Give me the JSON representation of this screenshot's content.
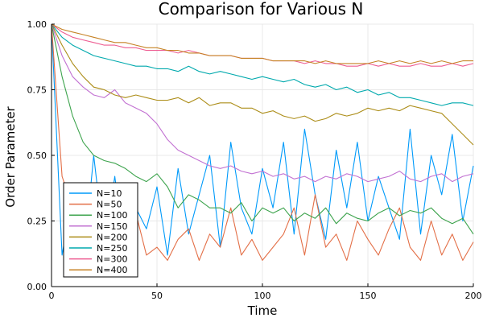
{
  "chart_data": {
    "type": "line",
    "title": "Comparison for Various N",
    "xlabel": "Time",
    "ylabel": "Order Parameter",
    "xlim": [
      0,
      200
    ],
    "ylim": [
      0.0,
      1.0
    ],
    "xticks": [
      0,
      50,
      100,
      150,
      200
    ],
    "xtick_labels": [
      "0",
      "50",
      "100",
      "150",
      "200"
    ],
    "yticks": [
      0.0,
      0.25,
      0.5,
      0.75,
      1.0
    ],
    "ytick_labels": [
      "0.00",
      "0.25",
      "0.50",
      "0.75",
      "1.00"
    ],
    "grid": true,
    "legend_position": "bottom-left",
    "x": [
      0,
      5,
      10,
      15,
      20,
      25,
      30,
      35,
      40,
      45,
      50,
      55,
      60,
      65,
      70,
      75,
      80,
      85,
      90,
      95,
      100,
      105,
      110,
      115,
      120,
      125,
      130,
      135,
      140,
      145,
      150,
      155,
      160,
      165,
      170,
      175,
      180,
      185,
      190,
      195,
      200
    ],
    "series": [
      {
        "name": "N=10",
        "color": "#009AFA",
        "values": [
          1.0,
          0.12,
          0.35,
          0.08,
          0.5,
          0.15,
          0.42,
          0.1,
          0.3,
          0.22,
          0.38,
          0.12,
          0.45,
          0.2,
          0.35,
          0.5,
          0.15,
          0.55,
          0.3,
          0.2,
          0.45,
          0.3,
          0.55,
          0.2,
          0.6,
          0.35,
          0.18,
          0.52,
          0.3,
          0.55,
          0.25,
          0.42,
          0.3,
          0.18,
          0.6,
          0.2,
          0.5,
          0.35,
          0.58,
          0.25,
          0.46
        ]
      },
      {
        "name": "N=50",
        "color": "#E36F47",
        "values": [
          1.0,
          0.42,
          0.3,
          0.35,
          0.22,
          0.25,
          0.2,
          0.18,
          0.28,
          0.12,
          0.15,
          0.1,
          0.18,
          0.22,
          0.1,
          0.2,
          0.15,
          0.3,
          0.12,
          0.18,
          0.1,
          0.15,
          0.2,
          0.3,
          0.12,
          0.35,
          0.15,
          0.2,
          0.1,
          0.25,
          0.18,
          0.12,
          0.22,
          0.3,
          0.15,
          0.1,
          0.25,
          0.12,
          0.2,
          0.1,
          0.17
        ]
      },
      {
        "name": "N=100",
        "color": "#3EA44E",
        "values": [
          1.0,
          0.8,
          0.65,
          0.55,
          0.5,
          0.48,
          0.47,
          0.45,
          0.42,
          0.4,
          0.43,
          0.38,
          0.3,
          0.35,
          0.33,
          0.3,
          0.3,
          0.28,
          0.32,
          0.25,
          0.3,
          0.28,
          0.3,
          0.25,
          0.28,
          0.26,
          0.3,
          0.24,
          0.28,
          0.26,
          0.25,
          0.28,
          0.3,
          0.27,
          0.29,
          0.28,
          0.3,
          0.26,
          0.24,
          0.26,
          0.2
        ]
      },
      {
        "name": "N=150",
        "color": "#C271D2",
        "values": [
          1.0,
          0.88,
          0.8,
          0.76,
          0.73,
          0.72,
          0.75,
          0.7,
          0.68,
          0.66,
          0.62,
          0.56,
          0.52,
          0.5,
          0.48,
          0.46,
          0.45,
          0.46,
          0.44,
          0.43,
          0.44,
          0.42,
          0.43,
          0.41,
          0.42,
          0.4,
          0.42,
          0.41,
          0.43,
          0.42,
          0.4,
          0.41,
          0.42,
          0.44,
          0.41,
          0.4,
          0.42,
          0.43,
          0.4,
          0.42,
          0.43
        ]
      },
      {
        "name": "N=200",
        "color": "#AC8D18",
        "values": [
          1.0,
          0.92,
          0.85,
          0.8,
          0.76,
          0.75,
          0.73,
          0.72,
          0.73,
          0.72,
          0.71,
          0.71,
          0.72,
          0.7,
          0.72,
          0.69,
          0.7,
          0.7,
          0.68,
          0.68,
          0.66,
          0.67,
          0.65,
          0.64,
          0.65,
          0.63,
          0.64,
          0.66,
          0.65,
          0.66,
          0.68,
          0.67,
          0.68,
          0.67,
          0.69,
          0.68,
          0.67,
          0.66,
          0.62,
          0.58,
          0.54
        ]
      },
      {
        "name": "N=250",
        "color": "#00A9AD",
        "values": [
          1.0,
          0.95,
          0.92,
          0.9,
          0.88,
          0.87,
          0.86,
          0.85,
          0.84,
          0.84,
          0.83,
          0.83,
          0.82,
          0.84,
          0.82,
          0.81,
          0.82,
          0.81,
          0.8,
          0.79,
          0.8,
          0.79,
          0.78,
          0.79,
          0.77,
          0.76,
          0.77,
          0.75,
          0.76,
          0.74,
          0.75,
          0.73,
          0.74,
          0.72,
          0.72,
          0.71,
          0.7,
          0.69,
          0.7,
          0.7,
          0.69
        ]
      },
      {
        "name": "N=300",
        "color": "#ED5D92",
        "values": [
          1.0,
          0.97,
          0.95,
          0.94,
          0.93,
          0.92,
          0.92,
          0.91,
          0.91,
          0.9,
          0.9,
          0.9,
          0.89,
          0.9,
          0.89,
          0.88,
          0.88,
          0.88,
          0.87,
          0.87,
          0.87,
          0.86,
          0.86,
          0.86,
          0.85,
          0.86,
          0.85,
          0.85,
          0.84,
          0.84,
          0.85,
          0.84,
          0.85,
          0.84,
          0.84,
          0.85,
          0.84,
          0.84,
          0.85,
          0.84,
          0.85
        ]
      },
      {
        "name": "N=400",
        "color": "#C68225",
        "values": [
          1.0,
          0.98,
          0.97,
          0.96,
          0.95,
          0.94,
          0.93,
          0.93,
          0.92,
          0.91,
          0.91,
          0.9,
          0.9,
          0.89,
          0.89,
          0.88,
          0.88,
          0.88,
          0.87,
          0.87,
          0.87,
          0.86,
          0.86,
          0.86,
          0.86,
          0.85,
          0.86,
          0.85,
          0.85,
          0.85,
          0.85,
          0.86,
          0.85,
          0.86,
          0.85,
          0.86,
          0.85,
          0.86,
          0.85,
          0.86,
          0.86
        ]
      }
    ]
  }
}
